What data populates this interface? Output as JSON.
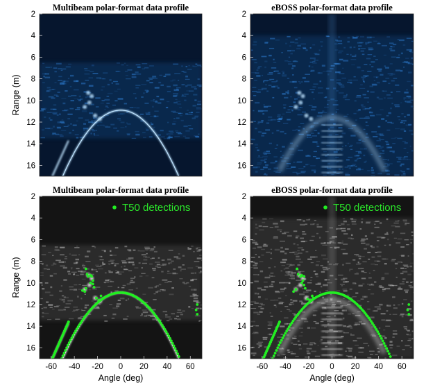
{
  "colors": {
    "blue_bg": "#06162e",
    "blue_bright": "#bfe4ff",
    "blue_mid": "#2f7fd4",
    "gray_bg": "#141414",
    "gray_bright": "#f2f2f2",
    "detection_green": "#22ee22"
  },
  "chart_data": [
    {
      "type": "heatmap",
      "panel": "top-left",
      "colormap": "blue",
      "title": "Multibeam polar-format data profile",
      "ylabel": "Range (m)",
      "xlabel": "",
      "xlim": [
        -70,
        70
      ],
      "ylim": [
        17,
        2
      ],
      "yticks": [
        2,
        4,
        6,
        8,
        10,
        12,
        14,
        16
      ],
      "xticks": [],
      "features": {
        "arc": {
          "center_angle": 0,
          "apex_range": 10.9,
          "half_width_deg": 50,
          "end_range": 17
        },
        "left_stroke": [
          [
            -45,
            13.7
          ],
          [
            -59,
            17
          ]
        ],
        "clutter_band_range": [
          6.5,
          13.5
        ]
      },
      "legend": null
    },
    {
      "type": "heatmap",
      "panel": "top-right",
      "colormap": "blue",
      "title": "eBOSS polar-format data profile",
      "ylabel": "",
      "xlabel": "",
      "xlim": [
        -70,
        70
      ],
      "ylim": [
        17,
        2
      ],
      "yticks": [
        2,
        4,
        6,
        8,
        10,
        12,
        14,
        16
      ],
      "xticks": [],
      "features": {
        "arc": {
          "center_angle": 0,
          "apex_range": 11.6,
          "half_width_deg": 45,
          "end_range": 16.5
        },
        "clutter_band_range": [
          4,
          17
        ]
      },
      "legend": null
    },
    {
      "type": "heatmap",
      "panel": "bottom-left",
      "colormap": "gray",
      "title": "Multibeam polar-format data profile",
      "ylabel": "Range (m)",
      "xlabel": "Angle (deg)",
      "xlim": [
        -70,
        70
      ],
      "ylim": [
        17,
        2
      ],
      "yticks": [
        2,
        4,
        6,
        8,
        10,
        12,
        14,
        16
      ],
      "xticks": [
        -60,
        -40,
        -20,
        0,
        20,
        40,
        60
      ],
      "features": {
        "arc": {
          "center_angle": 0,
          "apex_range": 10.9,
          "half_width_deg": 50,
          "end_range": 17
        },
        "left_stroke": [
          [
            -45,
            13.7
          ],
          [
            -59,
            17
          ]
        ],
        "clutter_band_range": [
          6.5,
          13.5
        ]
      },
      "detections": {
        "arc": {
          "center_angle": 0,
          "apex_range": 10.9,
          "half_width_deg": 51,
          "end_range": 17
        },
        "left_stroke": [
          [
            -45,
            13.6
          ],
          [
            -59,
            17
          ]
        ],
        "cluster": [
          [
            -30,
            8.7
          ],
          [
            -29,
            9.2
          ],
          [
            -28,
            9.4
          ],
          [
            -26,
            9.3
          ],
          [
            -25,
            9.4
          ],
          [
            -24,
            9.8
          ],
          [
            -26,
            10.0
          ],
          [
            -24,
            10.1
          ],
          [
            -23,
            10.4
          ],
          [
            -30,
            10.5
          ],
          [
            -31,
            10.8
          ],
          [
            -33,
            10.7
          ],
          [
            -21,
            11.4
          ],
          [
            -19,
            11.6
          ],
          [
            -15,
            11.4
          ],
          [
            -17,
            11.2
          ]
        ],
        "right_edge": [
          [
            66,
            12.0
          ],
          [
            65,
            12.5
          ],
          [
            66,
            12.9
          ]
        ]
      },
      "legend": {
        "label": "T50 detections",
        "location": "top-right"
      }
    },
    {
      "type": "heatmap",
      "panel": "bottom-right",
      "colormap": "gray",
      "title": "eBOSS polar-format data profile",
      "ylabel": "",
      "xlabel": "Angle (deg)",
      "xlim": [
        -70,
        70
      ],
      "ylim": [
        17,
        2
      ],
      "yticks": [
        2,
        4,
        6,
        8,
        10,
        12,
        14,
        16
      ],
      "xticks": [
        -60,
        -40,
        -20,
        0,
        20,
        40,
        60
      ],
      "features": {
        "arc": {
          "center_angle": 0,
          "apex_range": 11.6,
          "half_width_deg": 45,
          "end_range": 16.5
        },
        "clutter_band_range": [
          4,
          17
        ]
      },
      "detections": {
        "arc": {
          "center_angle": 0,
          "apex_range": 10.9,
          "half_width_deg": 51,
          "end_range": 17
        },
        "left_stroke": [
          [
            -45,
            13.6
          ],
          [
            -59,
            17
          ]
        ],
        "cluster": [
          [
            -30,
            8.7
          ],
          [
            -29,
            9.2
          ],
          [
            -27,
            9.4
          ],
          [
            -26,
            9.3
          ],
          [
            -24,
            9.4
          ],
          [
            -25,
            9.8
          ],
          [
            -26,
            10.0
          ],
          [
            -24,
            10.2
          ],
          [
            -23,
            10.5
          ],
          [
            -31,
            10.6
          ],
          [
            -33,
            10.8
          ],
          [
            -21,
            11.5
          ],
          [
            -19,
            11.6
          ],
          [
            -16,
            11.4
          ],
          [
            -17,
            11.2
          ]
        ],
        "right_edge": [
          [
            66,
            12.0
          ],
          [
            65,
            12.5
          ],
          [
            66,
            12.9
          ]
        ]
      },
      "legend": {
        "label": "T50 detections",
        "location": "top-right"
      }
    }
  ]
}
